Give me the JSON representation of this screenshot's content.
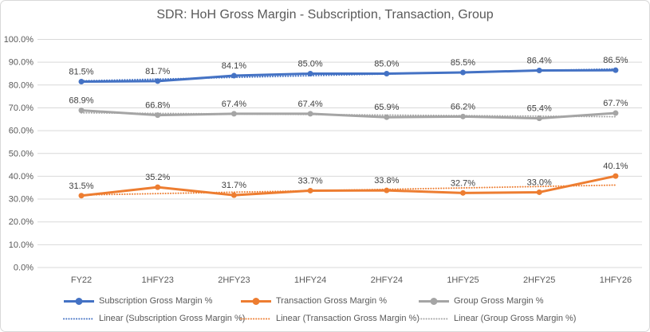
{
  "title": "SDR: HoH Gross Margin - Subscription, Transaction, Group",
  "chart_data": {
    "type": "line",
    "title": "SDR: HoH Gross Margin - Subscription, Transaction, Group",
    "categories": [
      "FY22",
      "1HFY23",
      "2HFY23",
      "1HFY24",
      "2HFY24",
      "1HFY25",
      "2HFY25",
      "1HFY26"
    ],
    "series": [
      {
        "name": "Subscription Gross Margin %",
        "color": "#4472C4",
        "values": [
          81.5,
          81.7,
          84.1,
          85.0,
          85.0,
          85.5,
          86.4,
          86.5
        ]
      },
      {
        "name": "Transaction Gross Margin %",
        "color": "#ED7D31",
        "values": [
          31.5,
          35.2,
          31.7,
          33.7,
          33.8,
          32.7,
          33.0,
          40.1
        ]
      },
      {
        "name": "Group Gross Margin %",
        "color": "#A5A5A5",
        "values": [
          68.9,
          66.8,
          67.4,
          67.4,
          65.9,
          66.2,
          65.4,
          67.7
        ]
      }
    ],
    "trendlines": [
      {
        "name": "Linear (Subscription Gross Margin %)",
        "series_index": 0,
        "color": "#4472C4"
      },
      {
        "name": "Linear (Transaction Gross Margin %)",
        "series_index": 1,
        "color": "#ED7D31"
      },
      {
        "name": "Linear (Group Gross Margin %)",
        "series_index": 2,
        "color": "#A5A5A5"
      }
    ],
    "yticks": [
      "100.0%",
      "90.0%",
      "80.0%",
      "70.0%",
      "60.0%",
      "50.0%",
      "40.0%",
      "30.0%",
      "20.0%",
      "10.0%",
      "0.0%"
    ],
    "ylim": [
      0,
      100
    ],
    "ytick_step": 10,
    "xlabel": "",
    "ylabel": "",
    "grid": true,
    "data_labels": true,
    "data_label_format": "0.0%",
    "legend_position": "bottom"
  },
  "colors": {
    "grid": "#D9D9D9",
    "border": "#D9D9D9",
    "axis_text": "#595959",
    "data_label_text": "#404040",
    "title_text": "#595959",
    "background": "#FFFFFF"
  }
}
